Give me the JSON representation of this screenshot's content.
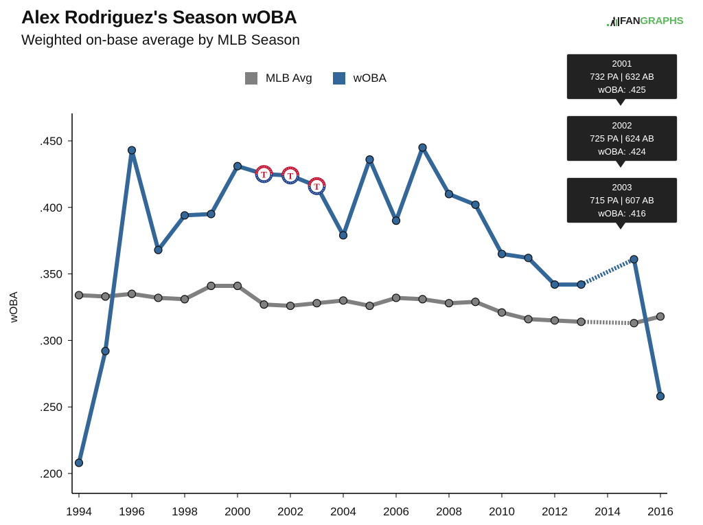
{
  "header": {
    "title": "Alex Rodriguez's Season wOBA",
    "subtitle": "Weighted on-base average by MLB Season",
    "logo_fan": "FAN",
    "logo_graphs": "GRAPHS"
  },
  "colors": {
    "woba": "#336699",
    "mlb_avg": "#808080",
    "tooltip_bg": "#222222",
    "logo_green": "#5cb85c"
  },
  "tooltips": [
    {
      "year": "2001",
      "line2": "732 PA | 632 AB",
      "line3": "wOBA: .425"
    },
    {
      "year": "2002",
      "line2": "725 PA | 624 AB",
      "line3": "wOBA: .424"
    },
    {
      "year": "2003",
      "line2": "715 PA | 607 AB",
      "line3": "wOBA: .416"
    }
  ],
  "chart_data": {
    "type": "line",
    "title": "Alex Rodriguez's Season wOBA",
    "subtitle": "Weighted on-base average by MLB Season",
    "xlabel": "",
    "ylabel": "wOBA",
    "xlim": [
      1994,
      2016
    ],
    "ylim": [
      0.185,
      0.472
    ],
    "x_ticks": [
      1994,
      1996,
      1998,
      2000,
      2002,
      2004,
      2006,
      2008,
      2010,
      2012,
      2014,
      2016
    ],
    "y_ticks": [
      ".200",
      ".250",
      ".300",
      ".350",
      ".400",
      ".450"
    ],
    "y_tick_values": [
      0.2,
      0.25,
      0.3,
      0.35,
      0.4,
      0.45
    ],
    "legend": {
      "position": "top-center",
      "entries": [
        "MLB Avg",
        "wOBA"
      ]
    },
    "grid": false,
    "x": [
      1994,
      1995,
      1996,
      1997,
      1998,
      1999,
      2000,
      2001,
      2002,
      2003,
      2004,
      2005,
      2006,
      2007,
      2008,
      2009,
      2010,
      2011,
      2012,
      2013,
      2015,
      2016
    ],
    "gap_between": [
      2013,
      2015
    ],
    "team_logo_years": [
      2001,
      2002,
      2003
    ],
    "team_logo": "Texas Rangers",
    "series": [
      {
        "name": "MLB Avg",
        "color": "#808080",
        "values": [
          0.334,
          0.333,
          0.335,
          0.332,
          0.331,
          0.341,
          0.341,
          0.327,
          0.326,
          0.328,
          0.33,
          0.326,
          0.332,
          0.331,
          0.328,
          0.329,
          0.321,
          0.316,
          0.315,
          0.314,
          0.313,
          0.318
        ]
      },
      {
        "name": "wOBA",
        "color": "#336699",
        "values": [
          0.208,
          0.292,
          0.443,
          0.368,
          0.394,
          0.395,
          0.431,
          0.425,
          0.424,
          0.416,
          0.379,
          0.436,
          0.39,
          0.445,
          0.41,
          0.402,
          0.365,
          0.362,
          0.342,
          0.342,
          0.361,
          0.258
        ]
      }
    ]
  }
}
